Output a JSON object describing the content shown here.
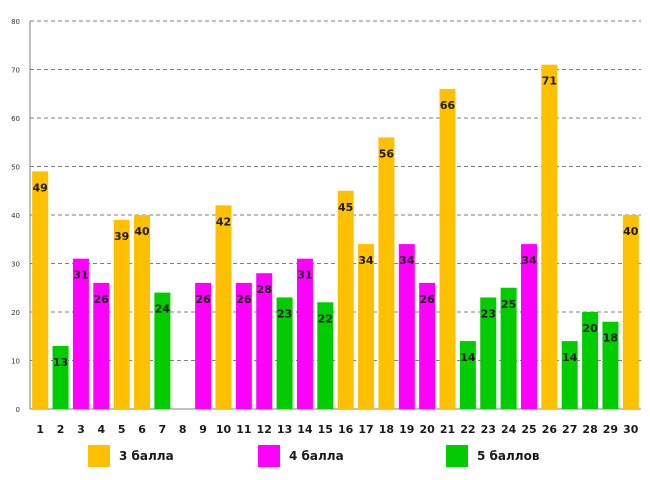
{
  "chart_data": {
    "type": "bar",
    "title": "",
    "xlabel": "",
    "ylabel": "",
    "ylim": [
      0,
      80
    ],
    "yticks": [
      0,
      10,
      20,
      30,
      40,
      50,
      60,
      70,
      80
    ],
    "grid": "horizontal dashed",
    "categories": [
      "1",
      "2",
      "3",
      "4",
      "5",
      "6",
      "7",
      "8",
      "9",
      "10",
      "11",
      "12",
      "13",
      "14",
      "15",
      "16",
      "17",
      "18",
      "19",
      "20",
      "21",
      "22",
      "23",
      "24",
      "25",
      "26",
      "27",
      "28",
      "29",
      "30"
    ],
    "values": [
      49,
      13,
      31,
      26,
      39,
      40,
      24,
      null,
      26,
      42,
      26,
      28,
      23,
      31,
      22,
      45,
      34,
      56,
      34,
      26,
      66,
      14,
      23,
      25,
      34,
      71,
      14,
      20,
      18,
      40
    ],
    "groups": [
      0,
      2,
      1,
      1,
      0,
      0,
      2,
      null,
      1,
      0,
      1,
      1,
      2,
      1,
      2,
      0,
      0,
      0,
      1,
      1,
      0,
      2,
      2,
      2,
      1,
      0,
      2,
      2,
      2,
      0
    ],
    "legend": [
      {
        "name": "3 балла",
        "color": "#ffc000"
      },
      {
        "name": "4 балла",
        "color": "#ff00ff"
      },
      {
        "name": "5 баллов",
        "color": "#00cc00"
      }
    ]
  }
}
